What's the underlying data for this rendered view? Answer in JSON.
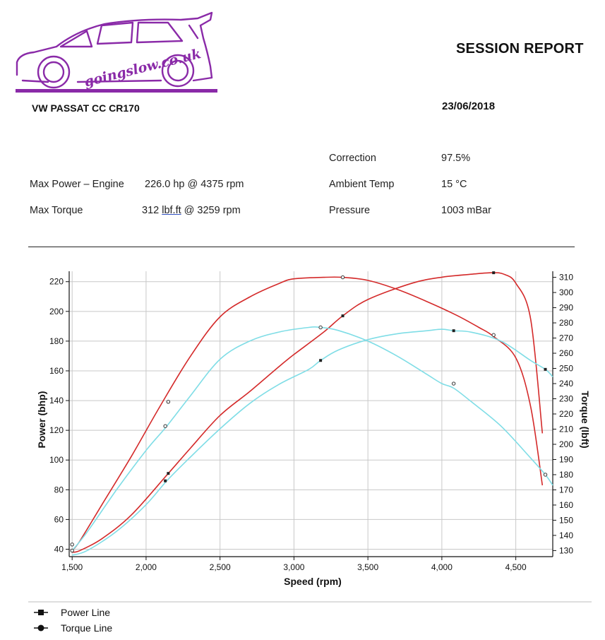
{
  "header": {
    "logo_text": "goingslow.co.uk",
    "report_title": "SESSION REPORT",
    "vehicle": "VW PASSAT CC CR170",
    "date": "23/06/2018"
  },
  "stats": {
    "max_power_label": "Max Power – Engine",
    "max_power_value": "226.0 hp @ 4375 rpm",
    "max_torque_label": "Max Torque",
    "max_torque_prefix": "312 ",
    "max_torque_unit": "lbf.ft",
    "max_torque_suffix": " @ 3259 rpm",
    "correction_label": "Correction",
    "correction_value": "97.5%",
    "ambient_label": "Ambient Temp",
    "ambient_value": "15 °C",
    "pressure_label": "Pressure",
    "pressure_value": "1003 mBar"
  },
  "colors": {
    "run1": "#d42a2a",
    "run2": "#7fdde6",
    "grid": "#c8c8c8",
    "logo": "#8a2aa8"
  },
  "chart_data": {
    "type": "line",
    "xlabel": "Speed (rpm)",
    "ylabel_left": "Power (bhp)",
    "ylabel_right": "Torque (lbft)",
    "xlim": [
      1480,
      4750
    ],
    "ylim_left": [
      35,
      227
    ],
    "ylim_right": [
      126,
      314
    ],
    "x_ticks": [
      1500,
      2000,
      2500,
      3000,
      3500,
      4000,
      4500
    ],
    "x_tick_labels": [
      "1,500",
      "2,000",
      "2,500",
      "3,000",
      "3,500",
      "4,000",
      "4,500"
    ],
    "y_left_ticks": [
      40,
      60,
      80,
      100,
      120,
      140,
      160,
      180,
      200,
      220
    ],
    "y_right_ticks": [
      130,
      140,
      150,
      160,
      170,
      180,
      190,
      200,
      210,
      220,
      230,
      240,
      250,
      260,
      270,
      280,
      290,
      300,
      310
    ],
    "grid": true,
    "series": [
      {
        "axis": "left",
        "color": "#d42a2a",
        "x": [
          1500,
          1550,
          1700,
          1900,
          2150,
          2300,
          2500,
          2700,
          2900,
          3000,
          3200,
          3330,
          3500,
          3800,
          4000,
          4200,
          4340,
          4420,
          4500,
          4600,
          4680
        ],
        "y": [
          38,
          39,
          47,
          63,
          91,
          108,
          130,
          146,
          163,
          171,
          186,
          197,
          208,
          219,
          223,
          225,
          226,
          225,
          219,
          195,
          118
        ],
        "markers": [
          [
            2150,
            91
          ],
          [
            3330,
            197
          ],
          [
            4350,
            226
          ]
        ]
      },
      {
        "axis": "right",
        "color": "#d42a2a",
        "x": [
          1500,
          1550,
          1700,
          1900,
          2100,
          2300,
          2500,
          2700,
          2900,
          3000,
          3200,
          3330,
          3500,
          3700,
          3900,
          4100,
          4250,
          4350,
          4500,
          4600,
          4680
        ],
        "y": [
          130,
          136,
          160,
          192,
          226,
          258,
          284,
          297,
          306,
          309,
          310,
          310,
          308,
          302,
          294,
          285,
          277,
          271,
          257,
          225,
          173
        ],
        "markers": [
          [
            1500,
            134
          ],
          [
            2150,
            228
          ],
          [
            3330,
            310
          ],
          [
            4350,
            272
          ]
        ]
      },
      {
        "axis": "left",
        "color": "#7fdde6",
        "x": [
          1500,
          1600,
          1800,
          2000,
          2140,
          2300,
          2500,
          2700,
          2900,
          3100,
          3180,
          3300,
          3500,
          3700,
          3900,
          4000,
          4080,
          4200,
          4400,
          4600,
          4700,
          4750
        ],
        "y": [
          36,
          39,
          52,
          70,
          86,
          102,
          121,
          138,
          151,
          161,
          167,
          174,
          181,
          185,
          187,
          188,
          187,
          186,
          180,
          167,
          161,
          156
        ],
        "markers": [
          [
            2130,
            86
          ],
          [
            3180,
            167
          ],
          [
            4080,
            187
          ],
          [
            4700,
            161
          ]
        ]
      },
      {
        "axis": "right",
        "color": "#7fdde6",
        "x": [
          1500,
          1600,
          1800,
          2000,
          2140,
          2300,
          2500,
          2700,
          2900,
          3100,
          3180,
          3300,
          3500,
          3700,
          3900,
          4000,
          4080,
          4200,
          4400,
          4600,
          4700,
          4750
        ],
        "y": [
          130,
          142,
          170,
          196,
          212,
          232,
          256,
          268,
          274,
          277,
          277,
          275,
          268,
          258,
          246,
          240,
          237,
          228,
          212,
          191,
          180,
          173
        ],
        "markers": [
          [
            1500,
            130
          ],
          [
            2130,
            212
          ],
          [
            3180,
            277
          ],
          [
            4080,
            240
          ],
          [
            4700,
            180
          ]
        ]
      }
    ],
    "legend": {
      "placement": "bottom-left",
      "entries": [
        {
          "label": "Power Line",
          "marker": "square"
        },
        {
          "label": "Torque Line",
          "marker": "circle"
        }
      ]
    }
  }
}
